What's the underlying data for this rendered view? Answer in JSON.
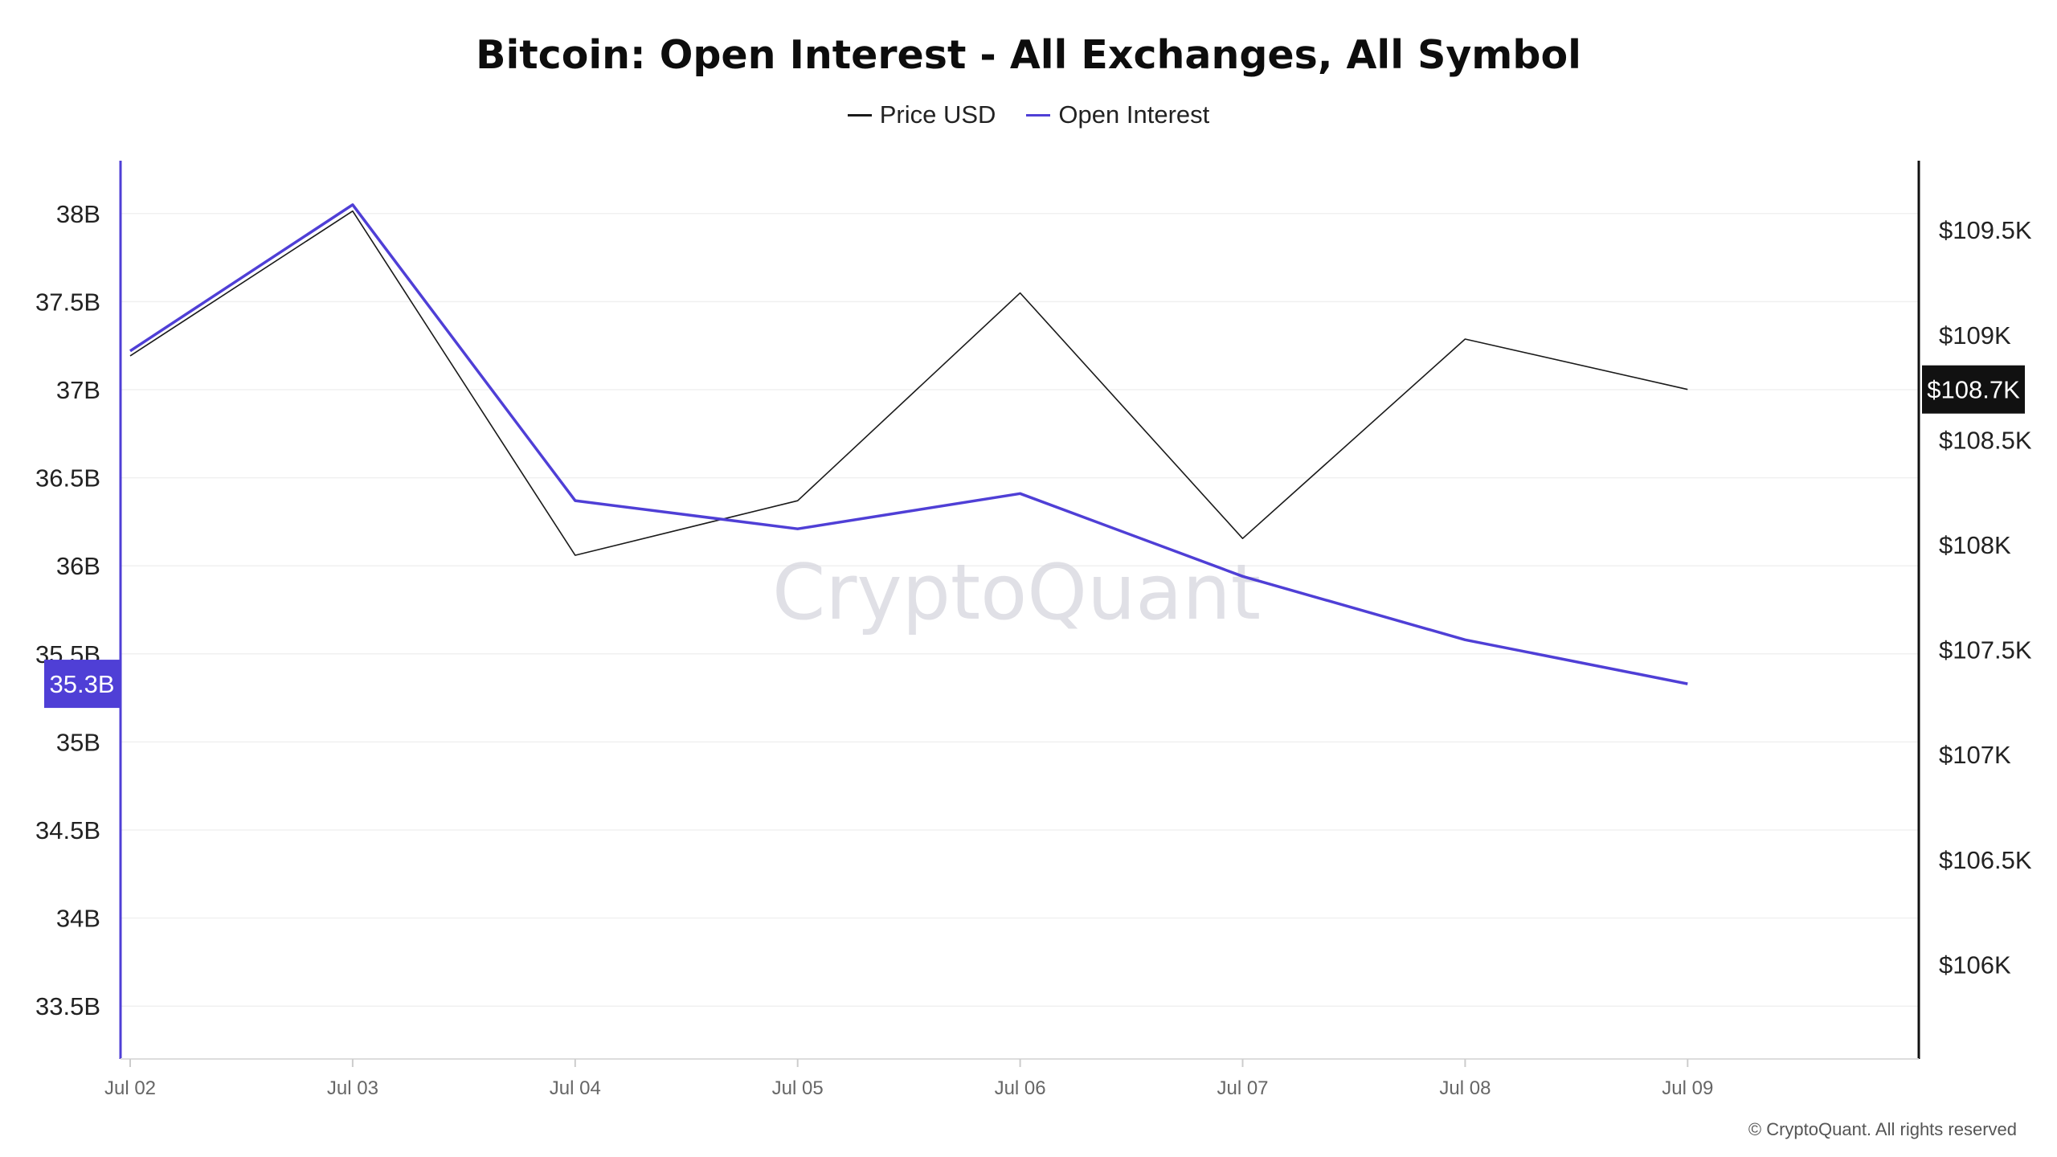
{
  "chart_data": {
    "type": "line",
    "title": "Bitcoin: Open Interest - All Exchanges, All Symbol",
    "x": [
      "Jul 02",
      "Jul 03",
      "Jul 04",
      "Jul 05",
      "Jul 06",
      "Jul 07",
      "Jul 08",
      "Jul 09"
    ],
    "series": [
      {
        "name": "Price USD",
        "axis": "right",
        "color": "#1a1a1a",
        "values": [
          108900,
          109590,
          107950,
          108210,
          109200,
          108030,
          108980,
          108740
        ]
      },
      {
        "name": "Open Interest",
        "axis": "left",
        "color": "#4f3fd6",
        "values": [
          37.22,
          38.05,
          36.37,
          36.21,
          36.41,
          35.94,
          35.58,
          35.33
        ]
      }
    ],
    "left_axis": {
      "ticks": [
        "38B",
        "37.5B",
        "37B",
        "36.5B",
        "36B",
        "35.5B",
        "35B",
        "34.5B",
        "34B",
        "33.5B"
      ],
      "tick_values": [
        38,
        37.5,
        37,
        36.5,
        36,
        35.5,
        35,
        34.5,
        34,
        33.5
      ],
      "range": [
        33.2,
        38.3
      ],
      "current_label": "35.3B",
      "current_value": 35.33
    },
    "right_axis": {
      "ticks": [
        "$109.5K",
        "$109K",
        "$108.5K",
        "$108K",
        "$107.5K",
        "$107K",
        "$106.5K",
        "$106K"
      ],
      "tick_values": [
        109500,
        109000,
        108500,
        108000,
        107500,
        107000,
        106500,
        106000
      ],
      "range": [
        105550,
        109830
      ],
      "current_label": "$108.7K",
      "current_value": 108740
    },
    "grid": true,
    "legend_placement": "top-center"
  },
  "watermark": "CryptoQuant",
  "copyright": "© CryptoQuant. All rights reserved"
}
